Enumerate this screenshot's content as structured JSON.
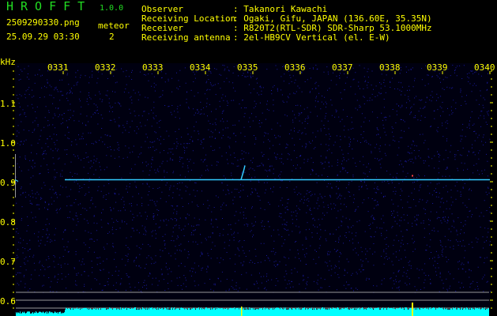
{
  "header": {
    "app_name": "HROFFT",
    "version": "1.0.0",
    "filename": "2509290330.png",
    "datetime": "25.09.29 03:30",
    "meteor_label": "meteor",
    "meteor_count": "2"
  },
  "info": [
    {
      "label": "Observer",
      "value": ": Takanori Kawachi"
    },
    {
      "label": "Receiving Location",
      "value": ": Ogaki, Gifu, JAPAN (136.60E, 35.35N)"
    },
    {
      "label": "Receiver",
      "value": ": R820T2(RTL-SDR) SDR-Sharp 53.1000MHz"
    },
    {
      "label": "Receiving antenna",
      "value": ": 2el-HB9CV Vertical (el. E-W)"
    }
  ],
  "spectrogram": {
    "y_unit": "kHz",
    "y_ticks": [
      "1.1",
      "1.0",
      "0.9",
      "0.8",
      "0.7",
      "0.6"
    ],
    "x_ticks": [
      "0331",
      "0332",
      "0333",
      "0334",
      "0335",
      "0336",
      "0337",
      "0338",
      "0339",
      "0340"
    ],
    "carrier_freq_khz": 0.905,
    "meteor_time": "0334.8",
    "colors": {
      "background": "#000010",
      "noise": "#1a1aa0",
      "carrier": "#33ccff",
      "level": "#00ffff",
      "label": "#ffff00",
      "grid": "#999999"
    }
  }
}
